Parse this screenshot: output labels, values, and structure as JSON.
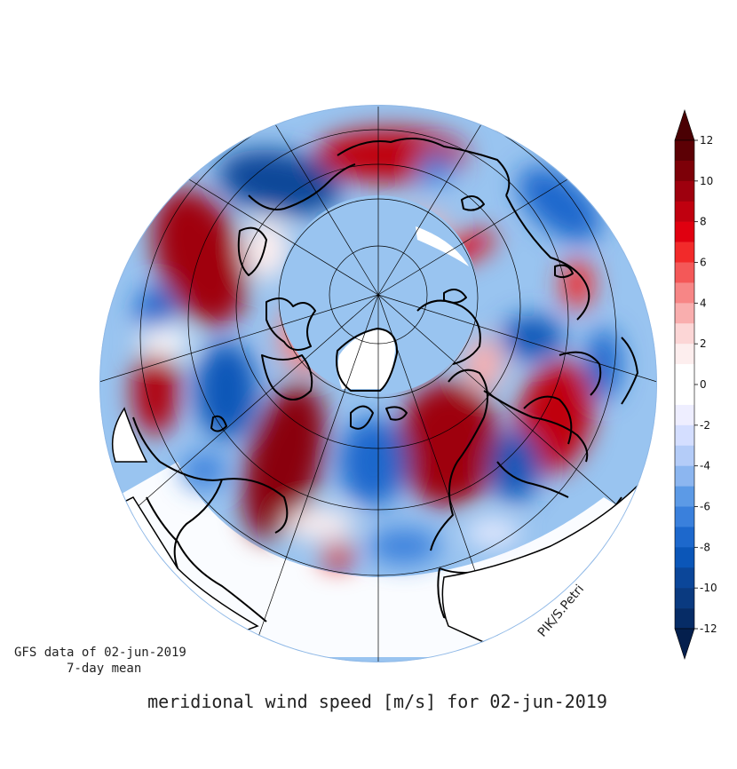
{
  "map": {
    "title": "meridional wind speed [m/s] for 02-jun-2019",
    "source_line1": "GFS data of 02-jun-2019",
    "source_line2": "7-day mean",
    "signature": "PIK/S.Petri",
    "projection": "north-polar orthographic",
    "background_color": "#99c4f0"
  },
  "colorbar": {
    "ticks": [
      "12",
      "10",
      "8",
      "6",
      "4",
      "2",
      "0",
      "-2",
      "-4",
      "-6",
      "-8",
      "-10",
      "-12"
    ],
    "colors_top_to_bottom": [
      "#5c0005",
      "#7d0008",
      "#9e000e",
      "#c0000f",
      "#e00010",
      "#f22a2a",
      "#f45858",
      "#f78686",
      "#f9aeae",
      "#fcd6d6",
      "#fdeeee",
      "#ffffff",
      "#ffffff",
      "#eeeeff",
      "#d4deff",
      "#b4ccf8",
      "#8cb6f0",
      "#5c9ae6",
      "#3a80dc",
      "#1d68cc",
      "#0b56b8",
      "#0b4699",
      "#0a3a80",
      "#062c66"
    ],
    "top_arrow_color": "#4a0003",
    "bottom_arrow_color": "#041f4d"
  }
}
